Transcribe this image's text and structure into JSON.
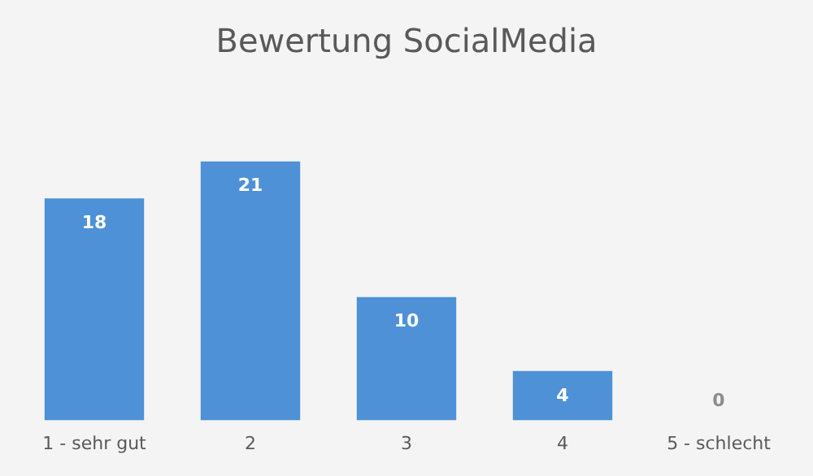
{
  "chart_data": {
    "type": "bar",
    "title": "Bewertung SocialMedia",
    "categories": [
      "1 - sehr gut",
      "2",
      "3",
      "4",
      "5 - schlecht"
    ],
    "values": [
      18,
      21,
      10,
      4,
      0
    ],
    "color": "#4e91d6",
    "data_labels": true,
    "grid": false,
    "legend": false
  }
}
